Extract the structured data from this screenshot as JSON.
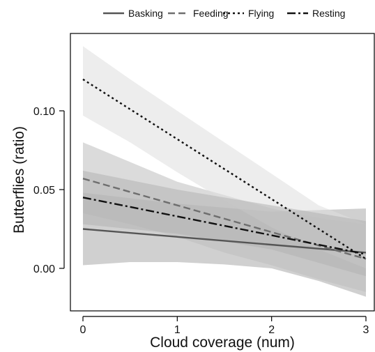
{
  "chart_data": {
    "type": "line",
    "title": "",
    "xlabel": "Cloud coverage (num)",
    "ylabel": "Butterflies (ratio)",
    "xlim": [
      0,
      3
    ],
    "ylim": [
      0,
      0.13
    ],
    "xticks": [
      0,
      1,
      2,
      3
    ],
    "xtick_labels": [
      "0",
      "1",
      "2",
      "3"
    ],
    "yticks": [
      0.0,
      0.05,
      0.1
    ],
    "ytick_labels": [
      "0.00",
      "0.05",
      "0.10"
    ],
    "grid": false,
    "legend_position": "top",
    "series": [
      {
        "name": "Basking",
        "style": "solid",
        "color": "#555555",
        "x": [
          0,
          3
        ],
        "y": [
          0.025,
          0.01
        ],
        "ci_lower": [
          [
            0,
            0.002
          ],
          [
            0.5,
            0.004
          ],
          [
            1,
            0.004
          ],
          [
            1.5,
            0.0025
          ],
          [
            2,
            0.0
          ],
          [
            2.5,
            -0.008
          ],
          [
            3,
            -0.018
          ]
        ],
        "ci_upper": [
          [
            0,
            0.048
          ],
          [
            1,
            0.041
          ],
          [
            2,
            0.036
          ],
          [
            3,
            0.038
          ]
        ],
        "band_color": "#a9a9a9"
      },
      {
        "name": "Feeding",
        "style": "dashed",
        "color": "#6e6e6e",
        "x": [
          0,
          3
        ],
        "y": [
          0.057,
          0.006
        ],
        "ci_lower": [
          [
            0,
            0.035
          ],
          [
            0.5,
            0.028
          ],
          [
            1,
            0.02
          ],
          [
            1.5,
            0.01
          ],
          [
            2,
            0.002
          ],
          [
            2.5,
            -0.007
          ],
          [
            3,
            -0.015
          ]
        ],
        "ci_upper": [
          [
            0,
            0.08
          ],
          [
            1,
            0.055
          ],
          [
            2,
            0.038
          ],
          [
            2.5,
            0.032
          ],
          [
            3,
            0.028
          ]
        ],
        "band_color": "#bdbdbd"
      },
      {
        "name": "Flying",
        "style": "dotted",
        "color": "#111111",
        "x": [
          0,
          3
        ],
        "y": [
          0.12,
          0.006
        ],
        "ci_lower": [
          [
            0,
            0.097
          ],
          [
            0.5,
            0.08
          ],
          [
            1,
            0.061
          ],
          [
            1.5,
            0.043
          ],
          [
            2,
            0.026
          ],
          [
            2.5,
            0.012
          ],
          [
            3,
            0.0
          ]
        ],
        "ci_upper": [
          [
            0,
            0.141
          ],
          [
            0.5,
            0.12
          ],
          [
            1,
            0.1
          ],
          [
            1.5,
            0.08
          ],
          [
            2,
            0.06
          ],
          [
            2.5,
            0.04
          ],
          [
            3,
            0.028
          ]
        ],
        "band_color": "#dedede"
      },
      {
        "name": "Resting",
        "style": "dashdot",
        "color": "#111111",
        "x": [
          0,
          3
        ],
        "y": [
          0.045,
          0.009
        ],
        "ci_lower": [
          [
            0,
            0.028
          ],
          [
            1,
            0.022
          ],
          [
            2,
            0.012
          ],
          [
            3,
            -0.005
          ]
        ],
        "ci_upper": [
          [
            0,
            0.062
          ],
          [
            1,
            0.05
          ],
          [
            2,
            0.04
          ],
          [
            3,
            0.03
          ]
        ],
        "band_color": "#b3b3b3"
      }
    ]
  }
}
